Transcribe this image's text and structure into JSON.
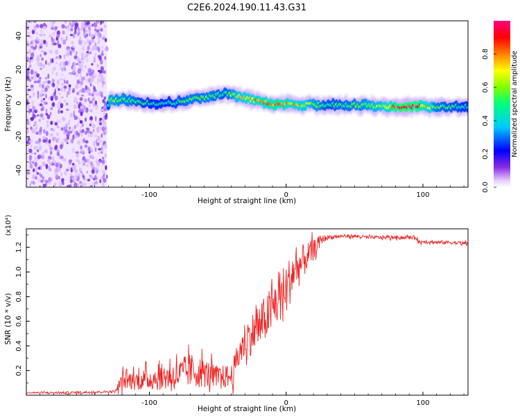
{
  "chart_data": [
    {
      "type": "heatmap",
      "title": "C2E6.2024.190.11.43.G31",
      "xlabel": "Height of straight line (km)",
      "ylabel": "Frequency (Hz)",
      "xlim": [
        -190,
        133
      ],
      "ylim": [
        -50,
        49
      ],
      "xticks": [
        "-100",
        "0",
        "100"
      ],
      "yticks": [
        "-40",
        "-20",
        "0",
        "20",
        "40"
      ],
      "colorbar": {
        "label": "Normalized spectral amplitude",
        "range": [
          0,
          1
        ],
        "ticks": [
          "0.0",
          "0.2",
          "0.4",
          "0.6",
          "0.8"
        ],
        "colormap": [
          "#6a00ff",
          "#0000ff",
          "#00c8ff",
          "#00ff80",
          "#80ff00",
          "#ffff00",
          "#ff8000",
          "#ff0000",
          "#ff0080"
        ]
      },
      "noise_region_x": [
        -190,
        -131
      ],
      "ridge": [
        {
          "x": -129,
          "y": 2,
          "amp": 0.6
        },
        {
          "x": -115,
          "y": 2,
          "amp": 0.55
        },
        {
          "x": -100,
          "y": 0,
          "amp": 0.45
        },
        {
          "x": -85,
          "y": 0,
          "amp": 0.45
        },
        {
          "x": -70,
          "y": 2,
          "amp": 0.55
        },
        {
          "x": -55,
          "y": 4,
          "amp": 0.55
        },
        {
          "x": -45,
          "y": 6,
          "amp": 0.5
        },
        {
          "x": -35,
          "y": 4,
          "amp": 0.65
        },
        {
          "x": -20,
          "y": 1,
          "amp": 0.75
        },
        {
          "x": -5,
          "y": -1,
          "amp": 0.8
        },
        {
          "x": 10,
          "y": -1,
          "amp": 0.7
        },
        {
          "x": 30,
          "y": -1,
          "amp": 0.5
        },
        {
          "x": 50,
          "y": -1,
          "amp": 0.55
        },
        {
          "x": 70,
          "y": -2,
          "amp": 0.65
        },
        {
          "x": 85,
          "y": -2,
          "amp": 0.95
        },
        {
          "x": 95,
          "y": -2,
          "amp": 0.9
        },
        {
          "x": 110,
          "y": -2,
          "amp": 0.55
        },
        {
          "x": 133,
          "y": -2,
          "amp": 0.45
        }
      ]
    },
    {
      "type": "line",
      "xlabel": "Height of straight line (km)",
      "ylabel": "SNR (10 * v/v)",
      "scale_label": "(x10⁴)",
      "xlim": [
        -190,
        133
      ],
      "ylim": [
        0,
        1.35
      ],
      "xticks": [
        "-100",
        "0",
        "100"
      ],
      "yticks": [
        "0.2",
        "0.4",
        "0.6",
        "0.8",
        "1.0",
        "1.2"
      ],
      "series": [
        {
          "color": "#ee2222",
          "x": [
            -190,
            -160,
            -125,
            -120,
            -110,
            -100,
            -90,
            -80,
            -70,
            -60,
            -50,
            -40,
            -35,
            -30,
            -20,
            -10,
            -5,
            0,
            5,
            10,
            15,
            20,
            25,
            30,
            40,
            50,
            60,
            70,
            80,
            90,
            95,
            98,
            100,
            110,
            120,
            133
          ],
          "y": [
            0.02,
            0.02,
            0.03,
            0.12,
            0.12,
            0.13,
            0.15,
            0.16,
            0.2,
            0.18,
            0.15,
            0.15,
            0.32,
            0.45,
            0.55,
            0.7,
            0.8,
            0.85,
            1.0,
            1.05,
            1.12,
            1.18,
            1.26,
            1.28,
            1.29,
            1.29,
            1.28,
            1.28,
            1.28,
            1.28,
            1.28,
            1.23,
            1.25,
            1.24,
            1.24,
            1.23
          ],
          "noise": [
            0.005,
            0.01,
            0.01,
            0.07,
            0.08,
            0.09,
            0.11,
            0.12,
            0.14,
            0.12,
            0.09,
            0.1,
            0.12,
            0.16,
            0.18,
            0.2,
            0.22,
            0.22,
            0.18,
            0.16,
            0.12,
            0.08,
            0.04,
            0.02,
            0.015,
            0.015,
            0.015,
            0.015,
            0.015,
            0.015,
            0.015,
            0.03,
            0.015,
            0.015,
            0.015,
            0.015
          ]
        }
      ]
    }
  ]
}
